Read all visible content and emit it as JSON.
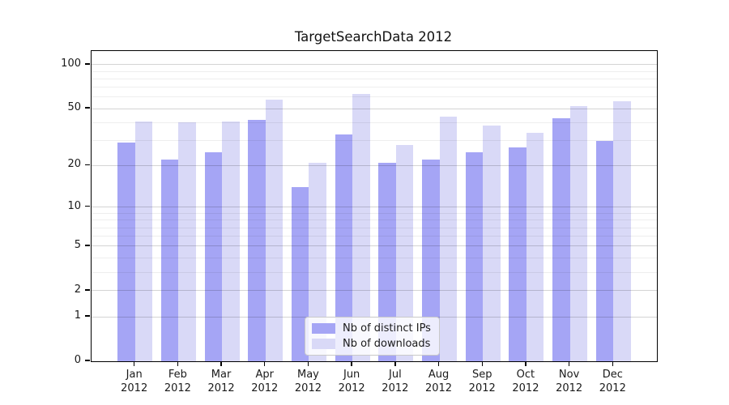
{
  "chart_data": {
    "type": "bar",
    "title": "TargetSearchData 2012",
    "categories": [
      "Jan",
      "Feb",
      "Mar",
      "Apr",
      "May",
      "Jun",
      "Jul",
      "Aug",
      "Sep",
      "Oct",
      "Nov",
      "Dec"
    ],
    "year_label": "2012",
    "series": [
      {
        "name": "Nb of distinct IPs",
        "color": "#a5a5f5",
        "values": [
          29,
          22,
          25,
          42,
          14,
          33,
          21,
          22,
          25,
          27,
          43,
          30
        ]
      },
      {
        "name": "Nb of downloads",
        "color": "#d9d9f7",
        "values": [
          41,
          40,
          41,
          58,
          21,
          63,
          28,
          44,
          38,
          34,
          52,
          56
        ]
      }
    ],
    "xlabel": "",
    "ylabel": "",
    "yscale": "log1p",
    "ylim": [
      0,
      124
    ],
    "yticks": [
      0,
      1,
      2,
      5,
      10,
      20,
      50,
      100
    ],
    "yticks_minor": [
      3,
      4,
      6,
      7,
      8,
      9,
      30,
      40,
      60,
      70,
      80,
      90
    ],
    "grid": true,
    "legend_position": "lower center"
  }
}
